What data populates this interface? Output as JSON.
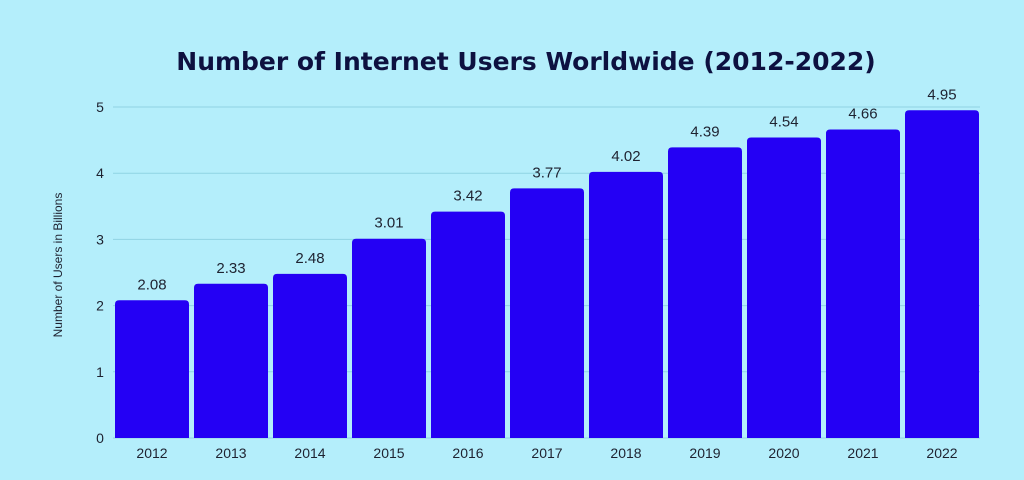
{
  "chart_data": {
    "type": "bar",
    "title": "Number of Internet Users Worldwide (2012-2022)",
    "xlabel": "",
    "ylabel": "Number of Users in Billions",
    "categories": [
      "2012",
      "2013",
      "2014",
      "2015",
      "2016",
      "2017",
      "2018",
      "2019",
      "2020",
      "2021",
      "2022"
    ],
    "values": [
      2.08,
      2.33,
      2.48,
      3.01,
      3.42,
      3.77,
      4.02,
      4.39,
      4.54,
      4.66,
      4.95
    ],
    "value_labels": [
      "2.08",
      "2.33",
      "2.48",
      "3.01",
      "3.42",
      "3.77",
      "4.02",
      "4.39",
      "4.54",
      "4.66",
      "4.95"
    ],
    "ylim": [
      0,
      5
    ],
    "yticks": [
      "0",
      "1",
      "2",
      "3",
      "4",
      "5"
    ],
    "grid": true,
    "colors": {
      "bar": "#2400f4",
      "background": "#b4eefb",
      "grid": "#8fd3e3"
    }
  }
}
